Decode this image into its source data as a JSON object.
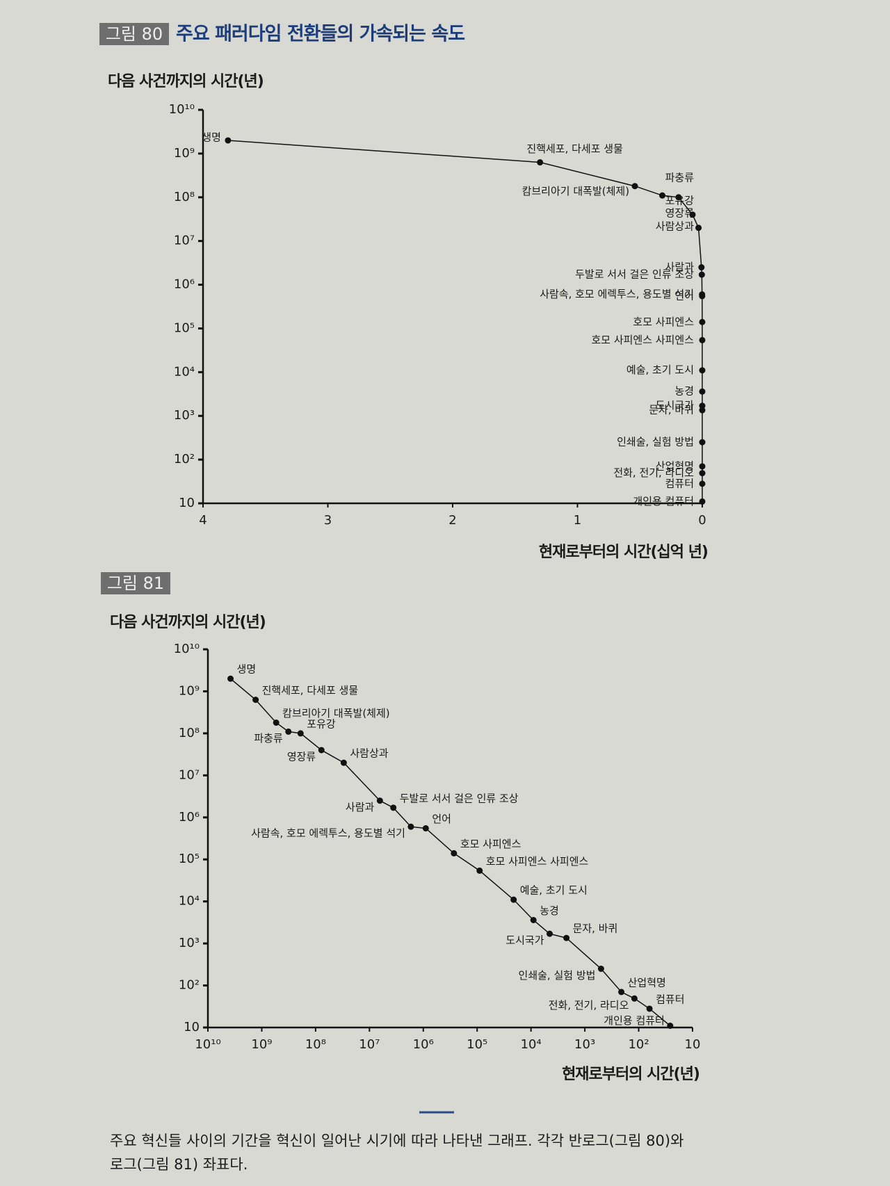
{
  "chart_data": [
    {
      "type": "line",
      "figure_label": "그림 80",
      "title": "주요 패러다임 전환들의 가속되는 속도",
      "y_label": "다음 사건까지의 시간(년)",
      "x_label": "현재로부터의 시간(십억 년)",
      "point_labels": [
        "생명",
        "진핵세포, 다세포 생물",
        "캄브리아기 대폭발(체제)",
        "파충류",
        "포유강",
        "영장류",
        "사람상과",
        "사람과",
        "두발로 서서 걸은 인류 조상",
        "사람속, 호모 에렉투스, 용도별 석기",
        "언어",
        "호모 사피엔스",
        "호모 사피엔스 사피엔스",
        "예술, 초기 도시",
        "농경",
        "도시국가",
        "문자, 바퀴",
        "인쇄술, 실험 방법",
        "산업혁명",
        "전화, 전기, 라디오",
        "컴퓨터",
        "개인용 컴퓨터"
      ],
      "x": [
        3.8,
        1.3,
        0.54,
        0.32,
        0.19,
        0.078,
        0.03,
        0.0064,
        0.0036,
        0.0017,
        0.0009,
        0.00027,
        9e-05,
        2.1e-05,
        9e-06,
        4.5e-06,
        2.2e-06,
        5e-07,
        2.1e-07,
        1.2e-07,
        6.3e-08,
        2.6e-08
      ],
      "values": [
        2000000000,
        630000000,
        180000000,
        110000000,
        100000000,
        40000000,
        20000000,
        2500000,
        1700000,
        600000,
        550000,
        140000,
        54000,
        11000,
        3600,
        1700,
        1350,
        250,
        70,
        49,
        28,
        11
      ],
      "color": "#111111",
      "xlim": [
        4,
        0
      ],
      "xticks": [
        4,
        3,
        2,
        1,
        0
      ],
      "ylim": [
        10,
        10000000000
      ],
      "y_log": true,
      "yticks": [
        {
          "value": 10000000000,
          "label": "10¹⁰"
        },
        {
          "value": 1000000000,
          "label": "10⁹"
        },
        {
          "value": 100000000,
          "label": "10⁸"
        },
        {
          "value": 10000000,
          "label": "10⁷"
        },
        {
          "value": 1000000,
          "label": "10⁶"
        },
        {
          "value": 100000,
          "label": "10⁵"
        },
        {
          "value": 10000,
          "label": "10⁴"
        },
        {
          "value": 1000,
          "label": "10³"
        },
        {
          "value": 100,
          "label": "10²"
        },
        10
      ]
    },
    {
      "type": "line",
      "figure_label": "그림 81",
      "y_label": "다음 사건까지의 시간(년)",
      "x_label": "현재로부터의 시간(년)",
      "point_labels": [
        "생명",
        "진핵세포, 다세포 생물",
        "캄브리아기 대폭발(체제)",
        "파충류",
        "포유강",
        "영장류",
        "사람상과",
        "사람과",
        "두발로 서서 걸은 인류 조상",
        "사람속, 호모 에렉투스, 용도별 석기",
        "언어",
        "호모 사피엔스",
        "호모 사피엔스 사피엔스",
        "예술, 초기 도시",
        "농경",
        "도시국가",
        "문자, 바퀴",
        "인쇄술, 실험 방법",
        "산업혁명",
        "전화, 전기, 라디오",
        "컴퓨터",
        "개인용 컴퓨터"
      ],
      "x": [
        3800000000,
        1300000000,
        540000000,
        320000000,
        190000000,
        78000000,
        30000000,
        6400000,
        3600000,
        1700000,
        900000,
        270000,
        90000,
        21000,
        9000,
        4500,
        2200,
        500,
        210,
        120,
        63,
        26
      ],
      "values": [
        2000000000,
        630000000,
        180000000,
        110000000,
        100000000,
        40000000,
        20000000,
        2500000,
        1700000,
        600000,
        550000,
        140000,
        54000,
        11000,
        3600,
        1700,
        1350,
        250,
        70,
        49,
        28,
        11
      ],
      "color": "#111111",
      "xlim": [
        10000000000,
        10
      ],
      "x_log": true,
      "xticks": [
        {
          "value": 10000000000,
          "label": "10¹⁰"
        },
        {
          "value": 1000000000,
          "label": "10⁹"
        },
        {
          "value": 100000000,
          "label": "10⁸"
        },
        {
          "value": 10000000,
          "label": "10⁷"
        },
        {
          "value": 1000000,
          "label": "10⁶"
        },
        {
          "value": 100000,
          "label": "10⁵"
        },
        {
          "value": 10000,
          "label": "10⁴"
        },
        {
          "value": 1000,
          "label": "10³"
        },
        {
          "value": 100,
          "label": "10²"
        },
        10
      ],
      "ylim": [
        10,
        10000000000
      ],
      "y_log": true,
      "yticks": [
        {
          "value": 10000000000,
          "label": "10¹⁰"
        },
        {
          "value": 1000000000,
          "label": "10⁹"
        },
        {
          "value": 100000000,
          "label": "10⁸"
        },
        {
          "value": 10000000,
          "label": "10⁷"
        },
        {
          "value": 1000000,
          "label": "10⁶"
        },
        {
          "value": 100000,
          "label": "10⁵"
        },
        {
          "value": 10000,
          "label": "10⁴"
        },
        {
          "value": 1000,
          "label": "10³"
        },
        {
          "value": 100,
          "label": "10²"
        },
        10
      ]
    }
  ],
  "caption": [
    "주요 혁신들 사이의 기간을 혁신이 일어난 시기에 따라 나타낸 그래프. 각각 반로그(그림 80)와",
    "로그(그림 81) 좌표다."
  ]
}
